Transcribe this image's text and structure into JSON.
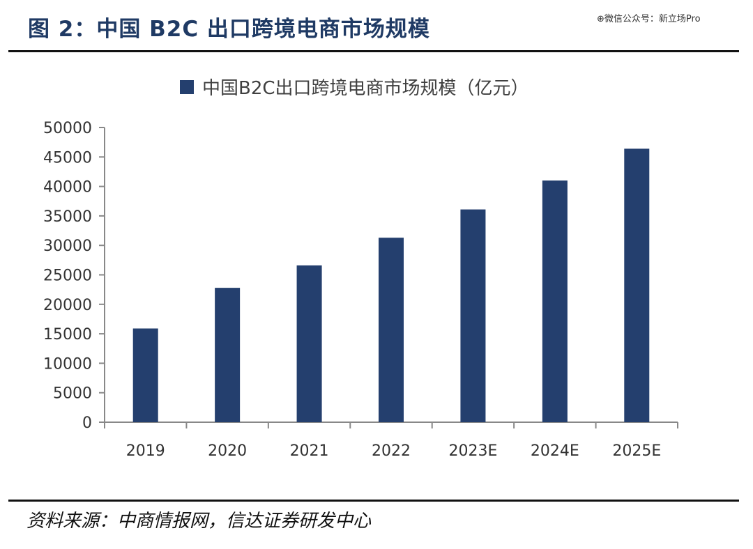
{
  "header": {
    "title": "图 2：中国 B2C 出口跨境电商市场规模",
    "watermark": "⊕微信公众号：新立场Pro"
  },
  "footer": {
    "source": "资料来源：中商情报网，信达证券研发中心"
  },
  "colors": {
    "bar": "#243f6e",
    "title": "#1f3a64",
    "axis": "#888888"
  },
  "chart_data": {
    "type": "bar",
    "title": "",
    "xlabel": "",
    "ylabel": "",
    "categories": [
      "2019",
      "2020",
      "2021",
      "2022",
      "2023E",
      "2024E",
      "2025E"
    ],
    "series": [
      {
        "name": "中国B2C出口跨境电商市场规模（亿元）",
        "values": [
          15900,
          22800,
          26600,
          31300,
          36100,
          41000,
          46400
        ]
      }
    ],
    "ylim": [
      0,
      50000
    ],
    "yticks": [
      0,
      5000,
      10000,
      15000,
      20000,
      25000,
      30000,
      35000,
      40000,
      45000,
      50000
    ],
    "grid": false,
    "legend": "top-center"
  }
}
